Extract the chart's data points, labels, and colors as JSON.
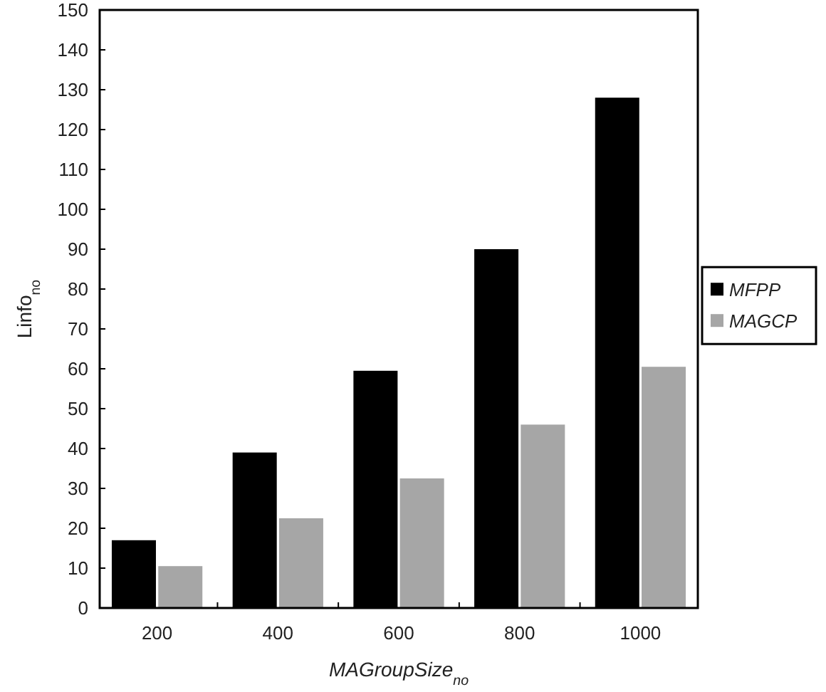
{
  "chart_data": {
    "type": "bar",
    "xlabel": "MAGroupSize$_{no}$",
    "ylabel": "Linfo$_{no}$",
    "categories": [
      "200",
      "400",
      "600",
      "800",
      "1000"
    ],
    "series": [
      {
        "name": "MFPP",
        "color": "#000000",
        "values": [
          17,
          39,
          59.5,
          90,
          128
        ]
      },
      {
        "name": "MAGCP",
        "color": "#a6a6a6",
        "values": [
          10.5,
          22.5,
          32.5,
          46,
          60.5
        ]
      }
    ],
    "ylim": [
      0,
      150
    ],
    "yticks": [
      0,
      10,
      20,
      30,
      40,
      50,
      60,
      70,
      80,
      90,
      100,
      110,
      120,
      130,
      140,
      150
    ],
    "legend": "right",
    "grid": false
  }
}
